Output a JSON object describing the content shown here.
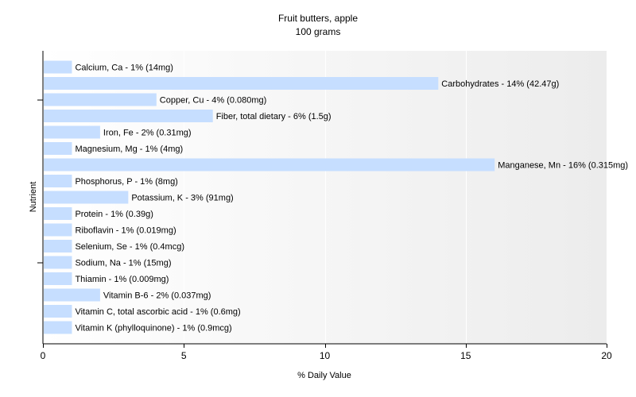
{
  "chart_data": {
    "type": "bar",
    "orientation": "horizontal",
    "title": "Fruit butters, apple",
    "subtitle": "100 grams",
    "xlabel": "% Daily Value",
    "ylabel": "Nutrient",
    "xlim": [
      0,
      20
    ],
    "xticks": [
      "0",
      "5",
      "10",
      "15",
      "20"
    ],
    "grid": true,
    "bar_color": "#c6deff",
    "categories": [
      "Calcium, Ca",
      "Carbohydrates",
      "Copper, Cu",
      "Fiber, total dietary",
      "Iron, Fe",
      "Magnesium, Mg",
      "Manganese, Mn",
      "Phosphorus, P",
      "Potassium, K",
      "Protein",
      "Riboflavin",
      "Selenium, Se",
      "Sodium, Na",
      "Thiamin",
      "Vitamin B-6",
      "Vitamin C, total ascorbic acid",
      "Vitamin K (phylloquinone)"
    ],
    "values": [
      1,
      14,
      4,
      6,
      2,
      1,
      16,
      1,
      3,
      1,
      1,
      1,
      1,
      1,
      2,
      1,
      1
    ],
    "labels": [
      "Calcium, Ca - 1% (14mg)",
      "Carbohydrates - 14% (42.47g)",
      "Copper, Cu - 4% (0.080mg)",
      "Fiber, total dietary - 6% (1.5g)",
      "Iron, Fe - 2% (0.31mg)",
      "Magnesium, Mg - 1% (4mg)",
      "Manganese, Mn - 16% (0.315mg)",
      "Phosphorus, P - 1% (8mg)",
      "Potassium, K - 3% (91mg)",
      "Protein - 1% (0.39g)",
      "Riboflavin - 1% (0.019mg)",
      "Selenium, Se - 1% (0.4mcg)",
      "Sodium, Na - 1% (15mg)",
      "Thiamin - 1% (0.009mg)",
      "Vitamin B-6 - 2% (0.037mg)",
      "Vitamin C, total ascorbic acid - 1% (0.6mg)",
      "Vitamin K (phylloquinone) - 1% (0.9mcg)"
    ]
  }
}
